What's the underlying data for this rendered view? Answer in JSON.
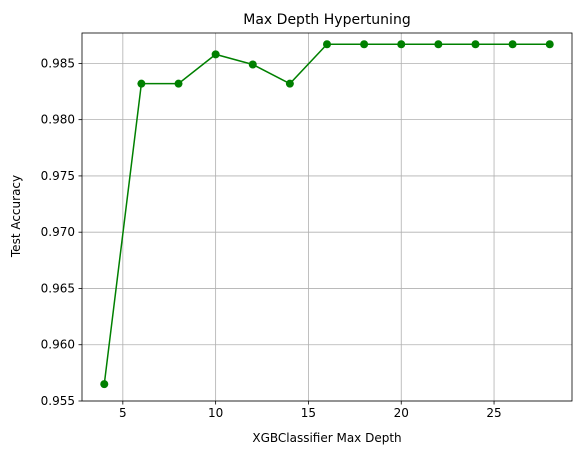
{
  "chart_data": {
    "type": "line",
    "title": "Max Depth Hypertuning",
    "xlabel": "XGBClassifier Max Depth",
    "ylabel": "Test Accuracy",
    "xlim": [
      2.8,
      29.2
    ],
    "ylim": [
      0.955,
      0.9877
    ],
    "xticks": [
      5,
      10,
      15,
      20,
      25
    ],
    "yticks": [
      0.955,
      0.96,
      0.965,
      0.97,
      0.975,
      0.98,
      0.985
    ],
    "ytick_labels": [
      "0.955",
      "0.960",
      "0.965",
      "0.970",
      "0.975",
      "0.980",
      "0.985"
    ],
    "grid": true,
    "series": [
      {
        "color": "#008000",
        "marker": "circle",
        "x": [
          4,
          6,
          8,
          10,
          12,
          14,
          16,
          18,
          20,
          22,
          24,
          26,
          28
        ],
        "y": [
          0.9565,
          0.9832,
          0.9832,
          0.9858,
          0.9849,
          0.9832,
          0.9867,
          0.9867,
          0.9867,
          0.9867,
          0.9867,
          0.9867,
          0.9867
        ]
      }
    ]
  }
}
